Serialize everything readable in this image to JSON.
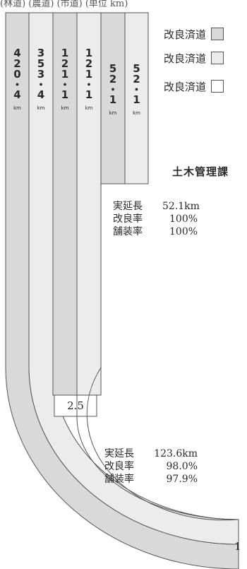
{
  "header": {
    "text": "(林道)  (農道)  (市道)   (単位  km)"
  },
  "legend": {
    "items": [
      {
        "label": "改良済道",
        "color": "#d9d9d9"
      },
      {
        "label": "改良済道",
        "color": "#ececec"
      },
      {
        "label": "改良済道",
        "color": "#ffffff"
      }
    ]
  },
  "section_title": "土木管理課",
  "stats_upper": {
    "rows": [
      {
        "label": "実延長",
        "value": "52.1km"
      },
      {
        "label": "改良率",
        "value": "100%"
      },
      {
        "label": "舗装率",
        "value": "100%"
      }
    ]
  },
  "stats_lower": {
    "rows": [
      {
        "label": "実延長",
        "value": "123.6km"
      },
      {
        "label": "改良率",
        "value": "98.0%"
      },
      {
        "label": "舗装率",
        "value": "97.9%"
      }
    ]
  },
  "gap_value": "2.5",
  "scale_note": "1",
  "chart_data": {
    "type": "bar",
    "unit": "km",
    "bars": [
      {
        "value": "420.4",
        "color": "#d9d9d9"
      },
      {
        "value": "353.4",
        "color": "#ececec"
      },
      {
        "value": "121.1",
        "color": "#d9d9d9"
      },
      {
        "value": "121.1",
        "color": "#ececec"
      },
      {
        "value": "52.1",
        "color": "#d9d9d9"
      },
      {
        "value": "52.1",
        "color": "#ececec"
      }
    ]
  }
}
